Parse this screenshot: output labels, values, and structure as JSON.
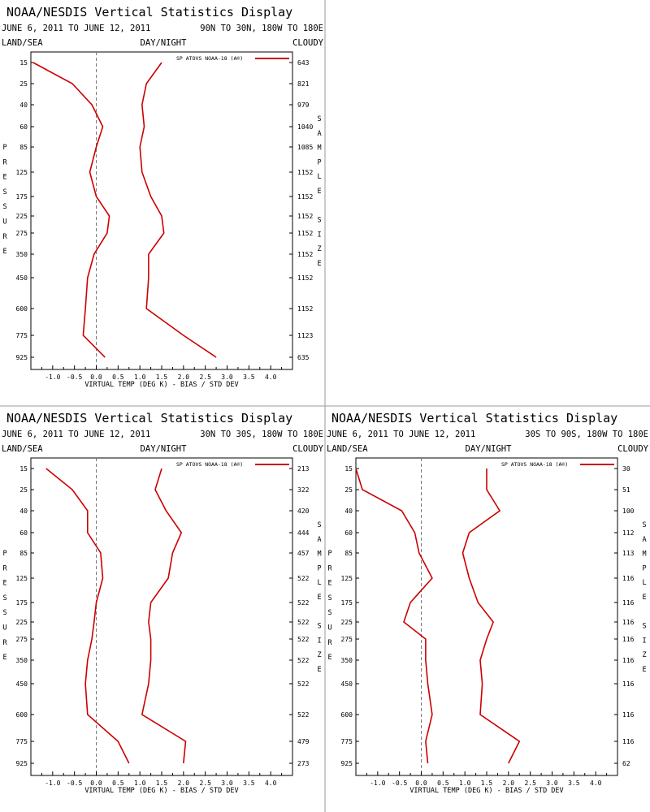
{
  "colors": {
    "series": "#cc0000",
    "axis": "#000000",
    "zero_line": "#777777",
    "divider": "#9a9a9a"
  },
  "labels": {
    "pressure_letters": [
      "P",
      "R",
      "E",
      "S",
      "S",
      "U",
      "R",
      "E"
    ],
    "sample_letters": [
      "S",
      "A",
      "M",
      "P",
      "L",
      "E",
      "",
      "S",
      "I",
      "Z",
      "E"
    ]
  },
  "chart_data": [
    {
      "type": "line",
      "title": "NOAA/NESDIS Vertical Statistics Display",
      "date_range": "JUNE 6, 2011 TO JUNE 12, 2011",
      "region": "90N TO 30N, 180W TO 180E",
      "corner_labels": {
        "left": "LAND/SEA",
        "center": "DAY/NIGHT",
        "right": "CLOUDY"
      },
      "legend": "SP ATOVS NOAA-18 (A®)",
      "xlabel": "VIRTUAL TEMP (DEG K) - BIAS / STD DEV",
      "ylabel": "PRESSURE",
      "y2label": "SAMPLE SIZE",
      "xlim": [
        -1.5,
        4.5
      ],
      "xticks": [
        "-1.0",
        "-0.5",
        "0.0",
        "0.5",
        "1.0",
        "1.5",
        "2.0",
        "2.5",
        "3.0",
        "3.5",
        "4.0"
      ],
      "pressure_levels": [
        "15",
        "25",
        "40",
        "60",
        "85",
        "125",
        "175",
        "225",
        "275",
        "350",
        "450",
        "600",
        "775",
        "925"
      ],
      "sample_size": [
        "643",
        "821",
        "979",
        "1040",
        "1085",
        "1152",
        "1152",
        "1152",
        "1152",
        "1152",
        "1152",
        "1152",
        "1123",
        "635"
      ],
      "series": [
        {
          "values": [
            -1.45,
            -0.55,
            -0.1,
            0.15,
            0.0,
            -0.15,
            0.0,
            0.3,
            0.25,
            -0.05,
            -0.2,
            -0.25,
            -0.3,
            0.2
          ]
        },
        {
          "values": [
            1.5,
            1.15,
            1.05,
            1.1,
            1.0,
            1.05,
            1.25,
            1.5,
            1.55,
            1.2,
            1.2,
            1.15,
            2.0,
            2.75
          ]
        }
      ]
    },
    {
      "type": "line",
      "title": "NOAA/NESDIS Vertical Statistics Display",
      "date_range": "JUNE 6, 2011 TO JUNE 12, 2011",
      "region": "30N TO 30S, 180W TO 180E",
      "corner_labels": {
        "left": "LAND/SEA",
        "center": "DAY/NIGHT",
        "right": "CLOUDY"
      },
      "legend": "SP ATOVS NOAA-18 (A®)",
      "xlabel": "VIRTUAL TEMP (DEG K) - BIAS / STD DEV",
      "ylabel": "PRESSURE",
      "y2label": "SAMPLE SIZE",
      "xlim": [
        -1.5,
        4.5
      ],
      "xticks": [
        "-1.0",
        "-0.5",
        "0.0",
        "0.5",
        "1.0",
        "1.5",
        "2.0",
        "2.5",
        "3.0",
        "3.5",
        "4.0"
      ],
      "pressure_levels": [
        "15",
        "25",
        "40",
        "60",
        "85",
        "125",
        "175",
        "225",
        "275",
        "350",
        "450",
        "600",
        "775",
        "925"
      ],
      "sample_size": [
        "213",
        "322",
        "420",
        "444",
        "457",
        "522",
        "522",
        "522",
        "522",
        "522",
        "522",
        "522",
        "479",
        "273"
      ],
      "series": [
        {
          "values": [
            -1.15,
            -0.55,
            -0.2,
            -0.2,
            0.1,
            0.15,
            0.0,
            -0.05,
            -0.1,
            -0.2,
            -0.25,
            -0.2,
            0.5,
            0.75
          ]
        },
        {
          "values": [
            1.5,
            1.35,
            1.6,
            1.95,
            1.75,
            1.65,
            1.25,
            1.2,
            1.25,
            1.25,
            1.2,
            1.05,
            2.05,
            2.0
          ]
        }
      ]
    },
    {
      "type": "line",
      "title": "NOAA/NESDIS Vertical Statistics Display",
      "date_range": "JUNE 6, 2011 TO JUNE 12, 2011",
      "region": "30S TO 90S, 180W TO 180E",
      "corner_labels": {
        "left": "LAND/SEA",
        "center": "DAY/NIGHT",
        "right": "CLOUDY"
      },
      "legend": "SP ATOVS NOAA-18 (A®)",
      "xlabel": "VIRTUAL TEMP (DEG K) - BIAS / STD DEV",
      "ylabel": "PRESSURE",
      "y2label": "SAMPLE SIZE",
      "xlim": [
        -1.5,
        4.5
      ],
      "xticks": [
        "-1.0",
        "-0.5",
        "0.0",
        "0.5",
        "1.0",
        "1.5",
        "2.0",
        "2.5",
        "3.0",
        "3.5",
        "4.0"
      ],
      "pressure_levels": [
        "15",
        "25",
        "40",
        "60",
        "85",
        "125",
        "175",
        "225",
        "275",
        "350",
        "450",
        "600",
        "775",
        "925"
      ],
      "sample_size": [
        "30",
        "51",
        "100",
        "112",
        "113",
        "116",
        "116",
        "116",
        "116",
        "116",
        "116",
        "116",
        "116",
        "62"
      ],
      "series": [
        {
          "values": [
            -1.5,
            -1.35,
            -0.45,
            -0.15,
            -0.05,
            0.25,
            -0.25,
            -0.4,
            0.1,
            0.1,
            0.15,
            0.25,
            0.1,
            0.15
          ]
        },
        {
          "values": [
            1.5,
            1.5,
            1.8,
            1.1,
            0.95,
            1.1,
            1.3,
            1.65,
            1.5,
            1.35,
            1.4,
            1.35,
            2.25,
            2.0
          ]
        }
      ]
    }
  ]
}
